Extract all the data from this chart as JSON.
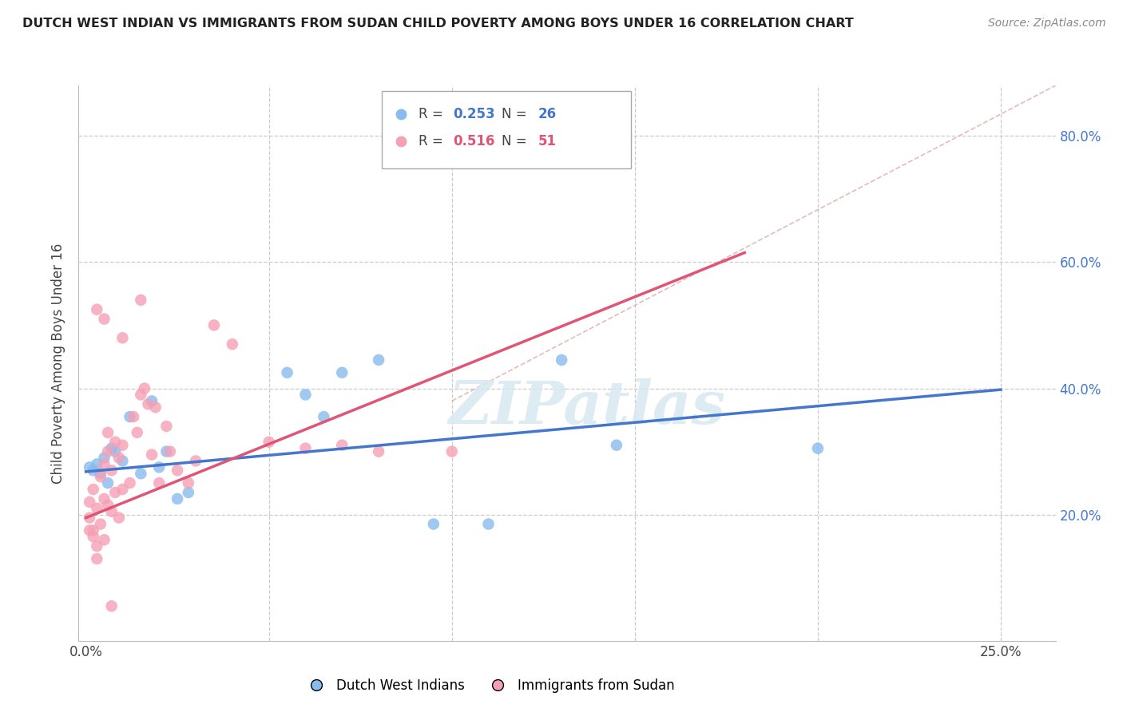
{
  "title": "DUTCH WEST INDIAN VS IMMIGRANTS FROM SUDAN CHILD POVERTY AMONG BOYS UNDER 16 CORRELATION CHART",
  "source": "Source: ZipAtlas.com",
  "ylabel": "Child Poverty Among Boys Under 16",
  "ylim": [
    0.0,
    0.88
  ],
  "xlim": [
    -0.002,
    0.265
  ],
  "ytick_vals": [
    0.0,
    0.2,
    0.4,
    0.6,
    0.8
  ],
  "ytick_labels": [
    "",
    "20.0%",
    "40.0%",
    "60.0%",
    "80.0%"
  ],
  "xtick_vals": [
    0.0,
    0.05,
    0.1,
    0.15,
    0.2,
    0.25
  ],
  "xtick_labels": [
    "0.0%",
    "",
    "",
    "",
    "",
    "25.0%"
  ],
  "blue_color": "#88bbee",
  "pink_color": "#f5a0b5",
  "blue_line_color": "#4477cc",
  "pink_line_color": "#e05575",
  "legend_label_blue": "Dutch West Indians",
  "legend_label_pink": "Immigrants from Sudan",
  "watermark": "ZIPatlas",
  "blue_scatter_x": [
    0.001,
    0.002,
    0.003,
    0.004,
    0.005,
    0.006,
    0.007,
    0.008,
    0.01,
    0.012,
    0.015,
    0.018,
    0.02,
    0.022,
    0.025,
    0.028,
    0.055,
    0.06,
    0.065,
    0.07,
    0.08,
    0.095,
    0.11,
    0.13,
    0.145,
    0.2
  ],
  "blue_scatter_y": [
    0.275,
    0.27,
    0.28,
    0.265,
    0.29,
    0.25,
    0.305,
    0.3,
    0.285,
    0.355,
    0.265,
    0.38,
    0.275,
    0.3,
    0.225,
    0.235,
    0.425,
    0.39,
    0.355,
    0.425,
    0.445,
    0.185,
    0.185,
    0.445,
    0.31,
    0.305
  ],
  "pink_scatter_x": [
    0.001,
    0.001,
    0.001,
    0.002,
    0.002,
    0.002,
    0.003,
    0.003,
    0.003,
    0.004,
    0.004,
    0.005,
    0.005,
    0.005,
    0.006,
    0.006,
    0.006,
    0.007,
    0.007,
    0.008,
    0.008,
    0.009,
    0.009,
    0.01,
    0.01,
    0.012,
    0.013,
    0.014,
    0.015,
    0.016,
    0.017,
    0.018,
    0.019,
    0.02,
    0.022,
    0.023,
    0.025,
    0.028,
    0.03,
    0.035,
    0.04,
    0.05,
    0.06,
    0.07,
    0.08,
    0.1,
    0.01,
    0.005,
    0.003,
    0.007,
    0.015
  ],
  "pink_scatter_y": [
    0.175,
    0.195,
    0.22,
    0.165,
    0.24,
    0.175,
    0.13,
    0.21,
    0.15,
    0.185,
    0.26,
    0.16,
    0.28,
    0.225,
    0.215,
    0.3,
    0.33,
    0.205,
    0.27,
    0.235,
    0.315,
    0.195,
    0.29,
    0.24,
    0.31,
    0.25,
    0.355,
    0.33,
    0.39,
    0.4,
    0.375,
    0.295,
    0.37,
    0.25,
    0.34,
    0.3,
    0.27,
    0.25,
    0.285,
    0.5,
    0.47,
    0.315,
    0.305,
    0.31,
    0.3,
    0.3,
    0.48,
    0.51,
    0.525,
    0.055,
    0.54
  ],
  "blue_line_x": [
    0.0,
    0.25
  ],
  "blue_line_y": [
    0.268,
    0.398
  ],
  "pink_line_x": [
    0.0,
    0.18
  ],
  "pink_line_y": [
    0.195,
    0.615
  ],
  "ref_line_x": [
    0.1,
    0.265
  ],
  "ref_line_y": [
    0.38,
    0.88
  ],
  "background_color": "#ffffff",
  "grid_color": "#cccccc",
  "title_color": "#222222",
  "source_color": "#888888"
}
